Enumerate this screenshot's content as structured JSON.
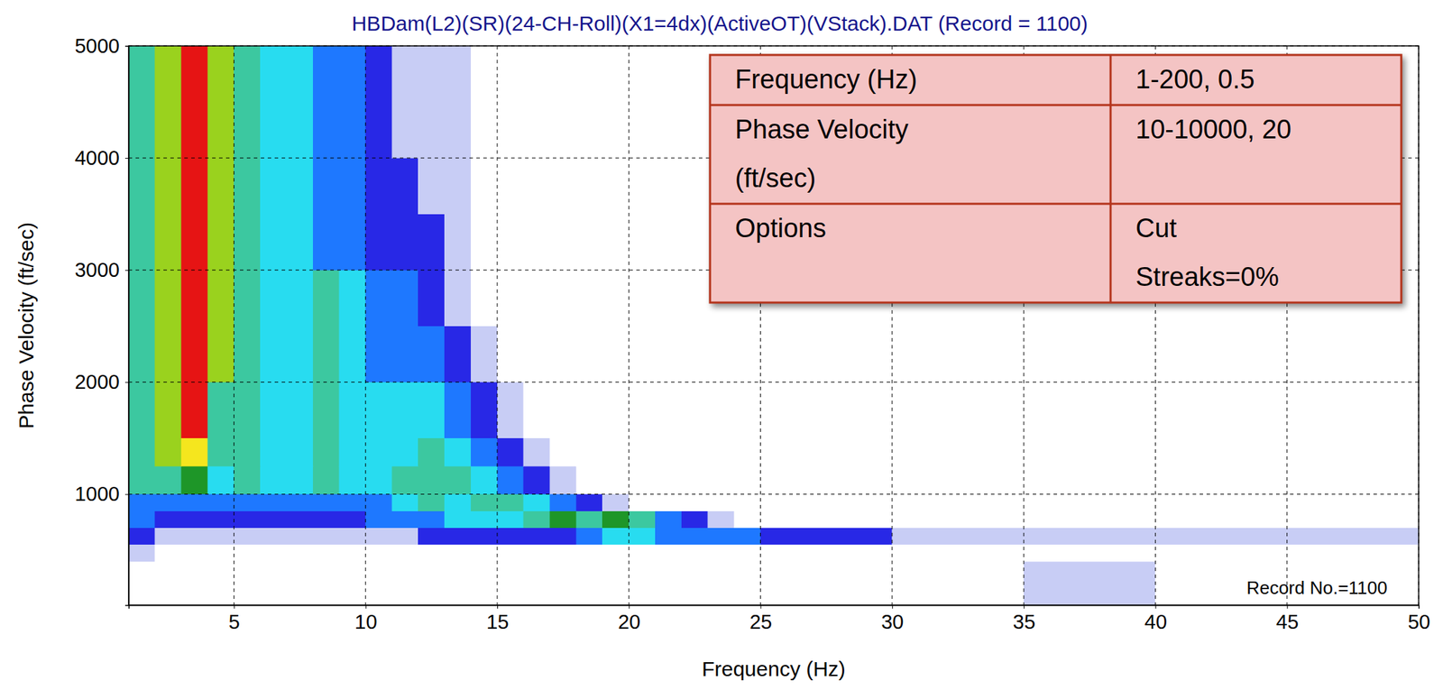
{
  "chart_data": {
    "type": "heatmap",
    "title": "HBDam(L2)(SR)(24-CH-Roll)(X1=4dx)(ActiveOT)(VStack).DAT (Record = 1100)",
    "x_label": "Frequency (Hz)",
    "y_label": "Phase Velocity (ft/sec)",
    "xlim": [
      1,
      50
    ],
    "ylim": [
      10,
      5000
    ],
    "xticks": [
      5,
      10,
      15,
      20,
      25,
      30,
      35,
      40,
      45,
      50
    ],
    "yticks": [
      1000,
      2000,
      3000,
      4000,
      5000
    ],
    "grid": true,
    "cells": {
      "x_edges": [
        1,
        2,
        3,
        4,
        5,
        6,
        7,
        8,
        9,
        10,
        11,
        12,
        13,
        14,
        15,
        16,
        17,
        18,
        19,
        20,
        21,
        22,
        23,
        24,
        25,
        30,
        35,
        40,
        45,
        50
      ],
      "y_edges": [
        10,
        400,
        550,
        700,
        850,
        1000,
        1250,
        1500,
        2000,
        2500,
        3000,
        3500,
        4000,
        4500,
        5000
      ],
      "zlim": [
        0,
        10
      ],
      "z": [
        [
          0,
          0,
          0,
          0,
          0,
          0,
          0,
          0,
          0,
          0,
          0,
          0,
          0,
          0,
          0,
          0,
          0,
          0,
          0,
          0,
          0,
          0,
          0,
          0,
          0,
          0,
          1,
          0,
          0
        ],
        [
          1,
          0,
          0,
          0,
          0,
          0,
          0,
          0,
          0,
          0,
          0,
          0,
          0,
          0,
          0,
          0,
          0,
          0,
          0,
          0,
          0,
          0,
          0,
          0,
          0,
          0,
          0,
          0,
          0
        ],
        [
          2,
          1,
          1,
          1,
          1,
          1,
          1,
          1,
          1,
          1,
          1,
          2,
          2,
          2,
          2,
          2,
          2,
          3,
          4,
          4,
          3,
          3,
          3,
          3,
          2,
          1,
          1,
          1,
          1
        ],
        [
          3,
          2,
          2,
          2,
          2,
          2,
          2,
          2,
          2,
          3,
          3,
          3,
          4,
          4,
          4,
          5,
          6,
          5,
          6,
          5,
          3,
          2,
          1,
          0,
          0,
          0,
          0,
          0,
          0
        ],
        [
          3,
          3,
          3,
          3,
          3,
          3,
          3,
          3,
          3,
          3,
          4,
          5,
          4,
          5,
          5,
          4,
          3,
          2,
          1,
          0,
          0,
          0,
          0,
          0,
          0,
          0,
          0,
          0,
          0
        ],
        [
          5,
          5,
          6,
          4,
          5,
          4,
          4,
          5,
          4,
          4,
          5,
          5,
          5,
          4,
          3,
          2,
          1,
          0,
          0,
          0,
          0,
          0,
          0,
          0,
          0,
          0,
          0,
          0,
          0
        ],
        [
          5,
          7,
          8,
          5,
          5,
          4,
          4,
          5,
          4,
          4,
          4,
          5,
          4,
          3,
          2,
          1,
          0,
          0,
          0,
          0,
          0,
          0,
          0,
          0,
          0,
          0,
          0,
          0,
          0
        ],
        [
          5,
          7,
          10,
          5,
          5,
          4,
          4,
          5,
          4,
          4,
          4,
          4,
          3,
          2,
          1,
          0,
          0,
          0,
          0,
          0,
          0,
          0,
          0,
          0,
          0,
          0,
          0,
          0,
          0
        ],
        [
          5,
          7,
          10,
          7,
          5,
          4,
          4,
          5,
          4,
          3,
          3,
          3,
          2,
          1,
          0,
          0,
          0,
          0,
          0,
          0,
          0,
          0,
          0,
          0,
          0,
          0,
          0,
          0,
          0
        ],
        [
          5,
          7,
          10,
          7,
          5,
          4,
          4,
          5,
          4,
          3,
          3,
          2,
          1,
          0,
          0,
          0,
          0,
          0,
          0,
          0,
          0,
          0,
          0,
          0,
          0,
          0,
          0,
          0,
          0
        ],
        [
          5,
          7,
          10,
          7,
          5,
          4,
          4,
          3,
          3,
          2,
          2,
          2,
          1,
          0,
          0,
          0,
          0,
          0,
          0,
          0,
          0,
          0,
          0,
          0,
          0,
          0,
          0,
          0,
          0
        ],
        [
          5,
          7,
          10,
          7,
          5,
          4,
          4,
          3,
          3,
          2,
          2,
          1,
          1,
          0,
          0,
          0,
          0,
          0,
          0,
          0,
          0,
          0,
          0,
          0,
          0,
          0,
          0,
          0,
          0
        ],
        [
          5,
          7,
          10,
          7,
          5,
          4,
          4,
          3,
          3,
          2,
          1,
          1,
          1,
          0,
          0,
          0,
          0,
          0,
          0,
          0,
          0,
          0,
          0,
          0,
          0,
          0,
          0,
          0,
          0
        ],
        [
          5,
          7,
          10,
          7,
          5,
          4,
          4,
          3,
          3,
          2,
          1,
          1,
          1,
          0,
          0,
          0,
          0,
          0,
          0,
          0,
          0,
          0,
          0,
          0,
          0,
          0,
          0,
          0,
          0
        ]
      ]
    },
    "annotations": {
      "table": [
        [
          [
            "Frequency (Hz)"
          ],
          [
            "1-200, 0.5"
          ]
        ],
        [
          [
            "Phase Velocity",
            "(ft/sec)"
          ],
          [
            "10-10000, 20"
          ]
        ],
        [
          [
            "Options"
          ],
          [
            "Cut",
            "Streaks=0%"
          ]
        ]
      ],
      "record": "Record No.=1100"
    }
  }
}
